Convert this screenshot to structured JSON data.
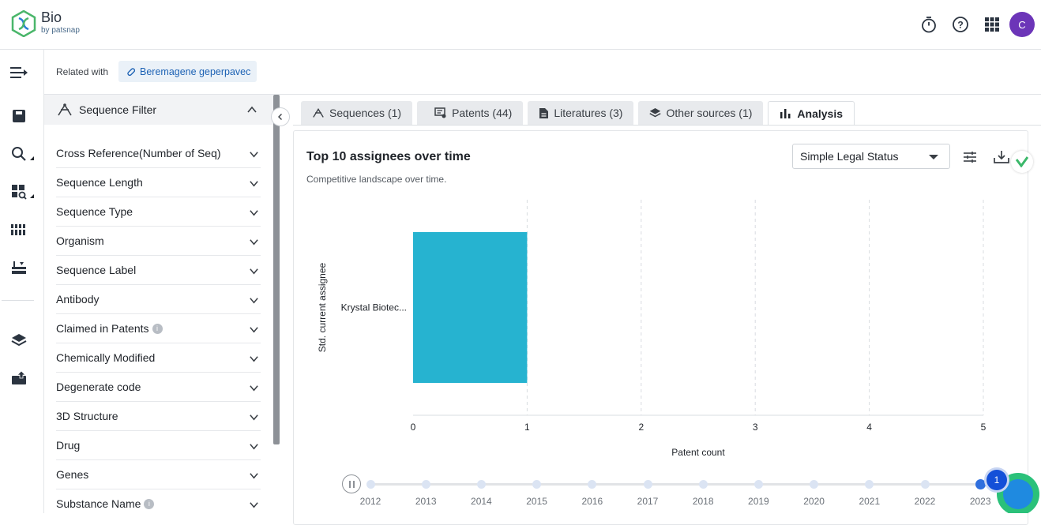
{
  "app": {
    "name": "Bio",
    "byline": "by patsnap",
    "avatar_initial": "C",
    "avatar_color": "#6c35b8"
  },
  "topbar": {
    "icons": [
      "timer-icon",
      "help-icon",
      "apps-grid-icon"
    ]
  },
  "sidenav": {
    "icons": [
      "menu-expand-icon",
      "save-icon",
      "search-icon",
      "structure-search-icon",
      "sequence-icon",
      "workspace-icon",
      "layers-icon",
      "upload-icon"
    ]
  },
  "related": {
    "label": "Related with",
    "chip": "Beremagene geperpavec"
  },
  "filter": {
    "title": "Sequence Filter",
    "items": [
      "Cross Reference(Number of Seq)",
      "Sequence Length",
      "Sequence Type",
      "Organism",
      "Sequence Label",
      "Antibody",
      "Claimed in Patents",
      "Chemically Modified",
      "Degenerate code",
      "3D Structure",
      "Drug",
      "Genes",
      "Substance Name"
    ]
  },
  "tabs": [
    {
      "label": "Sequences (1)",
      "icon": "sequence-icon"
    },
    {
      "label": "Patents (44)",
      "icon": "patent-icon"
    },
    {
      "label": "Literatures (3)",
      "icon": "document-icon"
    },
    {
      "label": "Other sources (1)",
      "icon": "box-icon"
    },
    {
      "label": "Analysis",
      "icon": "bar-chart-icon",
      "active": true
    }
  ],
  "card": {
    "title": "Top 10 assignees over time",
    "subtitle": "Competitive landscape over time.",
    "select_value": "Simple Legal Status"
  },
  "chart_data": {
    "type": "bar",
    "orientation": "horizontal",
    "categories": [
      "Krystal Biotec..."
    ],
    "values": [
      1
    ],
    "xlabel": "Patent count",
    "ylabel": "Std. current assignee",
    "xlim": [
      0,
      5
    ],
    "xticks": [
      0,
      1,
      2,
      3,
      4,
      5
    ],
    "grid": "vertical-dashed",
    "bar_color": "#26b3d0"
  },
  "timeline": {
    "years": [
      "2012",
      "2013",
      "2014",
      "2015",
      "2016",
      "2017",
      "2018",
      "2019",
      "2020",
      "2021",
      "2022",
      "2023"
    ],
    "active_year": "2023"
  },
  "notification_count": "1"
}
